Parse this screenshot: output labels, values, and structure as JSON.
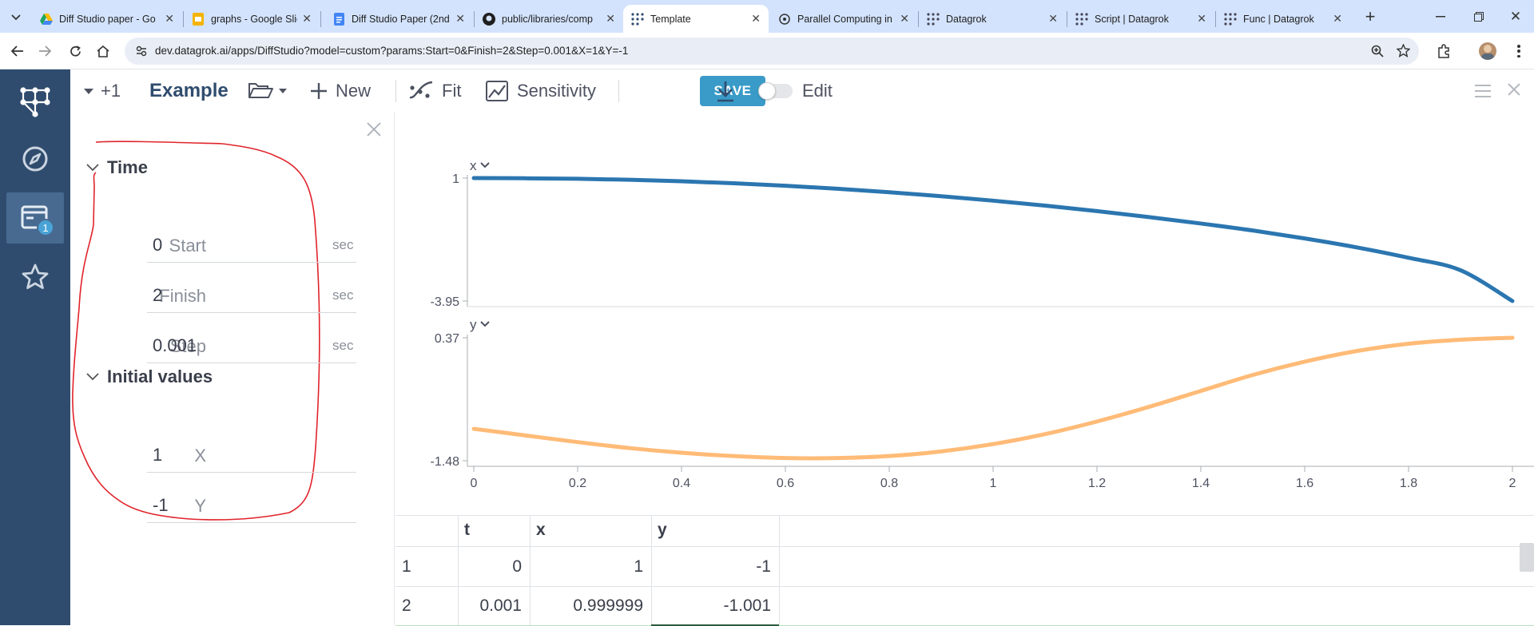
{
  "browser": {
    "tabs": [
      {
        "title": "Diff Studio paper - Go",
        "icon": "google-drive-icon"
      },
      {
        "title": "graphs - Google Slide",
        "icon": "google-slides-icon"
      },
      {
        "title": "Diff Studio Paper (2nd",
        "icon": "google-docs-icon"
      },
      {
        "title": "public/libraries/comp",
        "icon": "github-icon"
      },
      {
        "title": "Template",
        "icon": "datagrok-icon",
        "active": true
      },
      {
        "title": "Parallel Computing in",
        "icon": "chatgpt-icon"
      },
      {
        "title": "Datagrok",
        "icon": "datagrok-icon"
      },
      {
        "title": "Script | Datagrok",
        "icon": "datagrok-icon"
      },
      {
        "title": "Func | Datagrok",
        "icon": "datagrok-icon"
      }
    ],
    "url": "dev.datagrok.ai/apps/DiffStudio?model=custom?params:Start=0&Finish=2&Step=0.001&X=1&Y=-1"
  },
  "rail": {
    "badge": "1"
  },
  "toolbar": {
    "plus_count": "+1",
    "model_name": "Example",
    "new_label": "New",
    "fit_label": "Fit",
    "sensitivity_label": "Sensitivity",
    "save_label": "SAVE",
    "edit_label": "Edit"
  },
  "panel": {
    "groups": [
      {
        "title": "Time",
        "fields": [
          {
            "label": "Start",
            "value": "0",
            "unit": "sec"
          },
          {
            "label": "Finish",
            "value": "2",
            "unit": "sec"
          },
          {
            "label": "Step",
            "value": "0.001",
            "unit": "sec"
          }
        ]
      },
      {
        "title": "Initial values",
        "fields": [
          {
            "label": "X",
            "value": "1",
            "unit": ""
          },
          {
            "label": "Y",
            "value": "-1",
            "unit": ""
          }
        ]
      }
    ]
  },
  "chart_data": [
    {
      "type": "line",
      "series": [
        {
          "name": "x",
          "color": "#2b76b0",
          "x": [
            0,
            0.1,
            0.2,
            0.3,
            0.4,
            0.5,
            0.6,
            0.7,
            0.8,
            0.9,
            1,
            1.1,
            1.2,
            1.3,
            1.4,
            1.5,
            1.6,
            1.7,
            1.8,
            1.9,
            2
          ],
          "y": [
            1,
            0.99,
            0.97,
            0.93,
            0.87,
            0.79,
            0.69,
            0.57,
            0.43,
            0.27,
            0.09,
            -0.11,
            -0.33,
            -0.57,
            -0.83,
            -1.11,
            -1.43,
            -1.79,
            -2.21,
            -2.71,
            -3.95
          ]
        }
      ],
      "ylim": [
        -3.95,
        1
      ],
      "yticks": [
        "1",
        "-3.95"
      ],
      "grid": false
    },
    {
      "type": "line",
      "series": [
        {
          "name": "y",
          "color": "#ffbb77",
          "x": [
            0,
            0.1,
            0.2,
            0.3,
            0.4,
            0.5,
            0.6,
            0.7,
            0.8,
            0.9,
            1,
            1.1,
            1.2,
            1.3,
            1.4,
            1.5,
            1.6,
            1.7,
            1.8,
            1.9,
            2
          ],
          "y": [
            -1,
            -1.1,
            -1.2,
            -1.29,
            -1.36,
            -1.41,
            -1.44,
            -1.44,
            -1.41,
            -1.34,
            -1.23,
            -1.08,
            -0.89,
            -0.67,
            -0.43,
            -0.19,
            0.01,
            0.17,
            0.28,
            0.34,
            0.37
          ]
        }
      ],
      "ylim": [
        -1.48,
        0.37
      ],
      "yticks": [
        "0.37",
        "-1.48"
      ],
      "xticks": [
        "0",
        "0.2",
        "0.4",
        "0.6",
        "0.8",
        "1",
        "1.2",
        "1.4",
        "1.6",
        "1.8",
        "2"
      ],
      "xlim": [
        0,
        2
      ],
      "grid": false
    }
  ],
  "table": {
    "columns": [
      "t",
      "x",
      "y"
    ],
    "rows": [
      {
        "num": "1",
        "t": "0",
        "x": "1",
        "y": "-1"
      },
      {
        "num": "2",
        "t": "0.001",
        "x": "0.999999",
        "y": "-1.001"
      }
    ]
  }
}
